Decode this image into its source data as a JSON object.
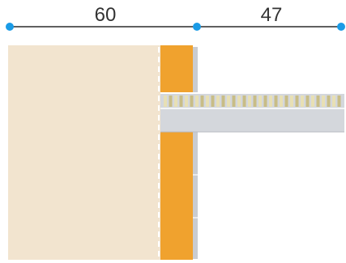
{
  "dimensions": {
    "segment_left_label": "60",
    "segment_right_label": "47",
    "segment_left_value": 60,
    "segment_right_value": 47
  },
  "colors": {
    "dimension_line": "#2b2b2b",
    "dimension_point": "#1a9be6",
    "wall_fill": "#f2e4cf",
    "insulation_fill": "#f0a22e",
    "slab_fill": "#d4d7dc",
    "slab_stripe": "#e8e0b4",
    "edge_line": "#ffffff",
    "panel_edge": "#c9ccd1"
  }
}
